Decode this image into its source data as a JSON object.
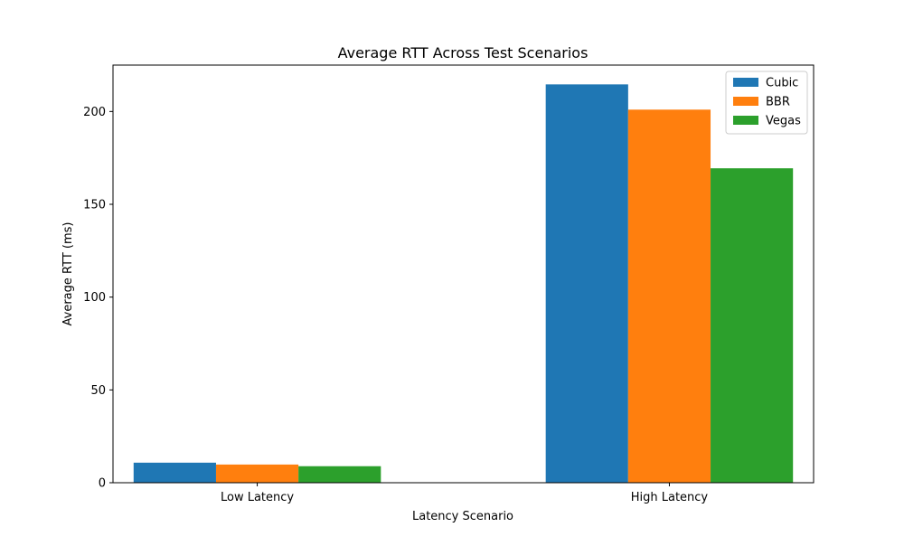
{
  "chart_data": {
    "type": "bar",
    "title": "Average RTT Across Test Scenarios",
    "xlabel": "Latency Scenario",
    "ylabel": "Average RTT (ms)",
    "categories": [
      "Low Latency",
      "High Latency"
    ],
    "series": [
      {
        "name": "Cubic",
        "values": [
          10.8,
          214.6
        ],
        "color": "#1f77b4"
      },
      {
        "name": "BBR",
        "values": [
          9.8,
          201.0
        ],
        "color": "#ff7f0e"
      },
      {
        "name": "Vegas",
        "values": [
          8.9,
          169.4
        ],
        "color": "#2ca02c"
      }
    ],
    "ylim": [
      0,
      225
    ],
    "yticks": [
      0,
      50,
      100,
      150,
      200
    ],
    "grid": false,
    "legend_position": "top-right"
  }
}
